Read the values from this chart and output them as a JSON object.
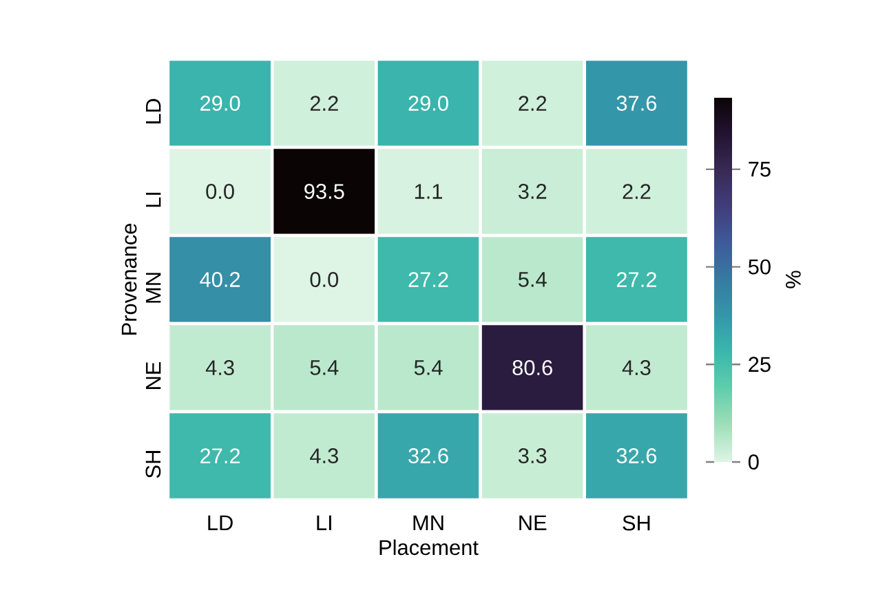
{
  "chart_data": {
    "type": "heatmap",
    "xlabel": "Placement",
    "ylabel": "Provenance",
    "clabel": "%",
    "categories": [
      "LD",
      "LI",
      "MN",
      "NE",
      "SH"
    ],
    "y_categories": [
      "LD",
      "LI",
      "MN",
      "NE",
      "SH"
    ],
    "cells": [
      [
        29.0,
        2.2,
        29.0,
        2.2,
        37.6
      ],
      [
        0.0,
        93.5,
        1.1,
        3.2,
        2.2
      ],
      [
        40.2,
        0.0,
        27.2,
        5.4,
        27.2
      ],
      [
        4.3,
        5.4,
        5.4,
        80.6,
        4.3
      ],
      [
        27.2,
        4.3,
        32.6,
        3.3,
        32.6
      ]
    ],
    "cell_labels": [
      [
        "29.0",
        "2.2",
        "29.0",
        "2.2",
        "37.6"
      ],
      [
        "0.0",
        "93.5",
        "1.1",
        "3.2",
        "2.2"
      ],
      [
        "40.2",
        "0.0",
        "27.2",
        "5.4",
        "27.2"
      ],
      [
        "4.3",
        "5.4",
        "5.4",
        "80.6",
        "4.3"
      ],
      [
        "27.2",
        "4.3",
        "32.6",
        "3.3",
        "32.6"
      ]
    ],
    "clim": [
      0,
      93.5
    ],
    "cticks": [
      0,
      25,
      50,
      75
    ]
  }
}
